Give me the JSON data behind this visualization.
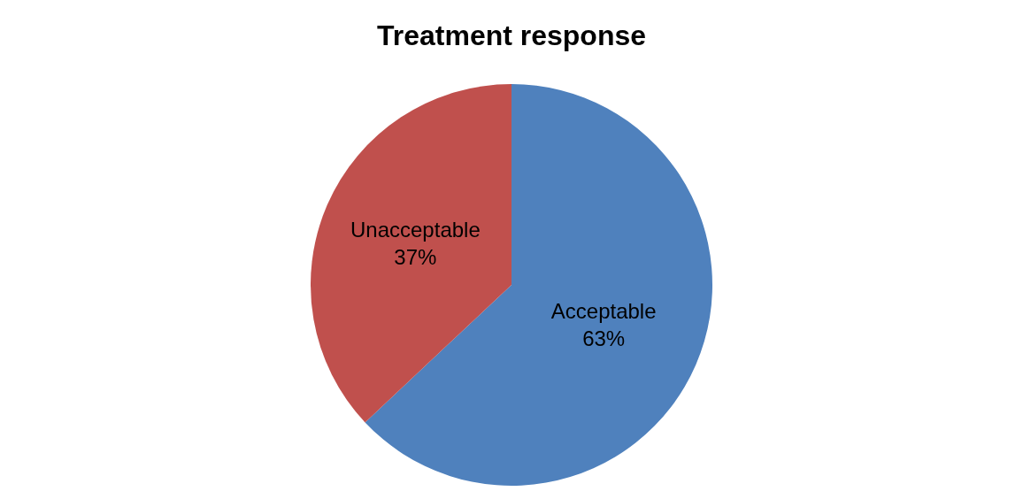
{
  "chart_data": {
    "type": "pie",
    "title": "Treatment response",
    "categories": [
      "Acceptable",
      "Unacceptable"
    ],
    "values": [
      63,
      37
    ],
    "value_labels": [
      "63%",
      "37%"
    ],
    "colors": [
      "#4f81bd",
      "#c0504d"
    ],
    "legend": false
  }
}
